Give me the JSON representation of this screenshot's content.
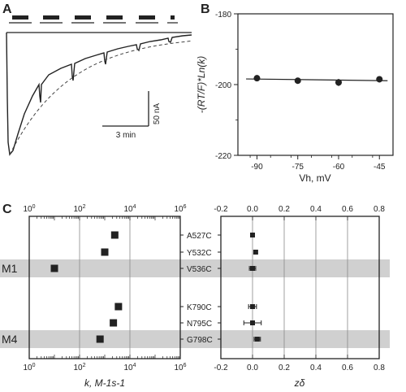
{
  "panels": {
    "a": "A",
    "b": "B",
    "c": "C"
  },
  "chart_data": [
    {
      "panel": "A",
      "type": "line",
      "scale_bars": {
        "current": "50 nA",
        "time": "3 min"
      },
      "application_bars_count": 6,
      "description_free": true
    },
    {
      "panel": "B",
      "type": "scatter",
      "xlabel": "Vh, mV",
      "ylabel": "-(RT/F)*Ln(k)",
      "xlim": [
        -97,
        -40
      ],
      "ylim": [
        -220,
        -180
      ],
      "x_ticks": [
        -90,
        -75,
        -60,
        -45
      ],
      "x_tick_labels": [
        "-90",
        "-75",
        "-60",
        "-45"
      ],
      "y_ticks": [
        -220,
        -200,
        -180
      ],
      "y_tick_labels": [
        "-220",
        "-200",
        "-180"
      ],
      "points": [
        {
          "x": -90,
          "y": -198.2
        },
        {
          "x": -75,
          "y": -198.9
        },
        {
          "x": -60,
          "y": -199.4,
          "err": 1.0
        },
        {
          "x": -45,
          "y": -198.5
        }
      ],
      "fit": {
        "x": [
          -94,
          -42
        ],
        "y": [
          -198.4,
          -198.9
        ]
      }
    },
    {
      "panel": "C-left",
      "type": "scatter",
      "xlabel": "k, M-1s-1",
      "x_scale": "log",
      "xlim": [
        1,
        1000000
      ],
      "x_ticks": [
        1,
        100,
        10000,
        1000000
      ],
      "x_tick_exponents": [
        "0",
        "2",
        "4",
        "6"
      ],
      "categories": [
        "A527C",
        "Y532C",
        "V536C",
        "K790C",
        "N795C",
        "G798C"
      ],
      "values": [
        2500,
        1000,
        10,
        3500,
        2200,
        650
      ],
      "group_labels": [
        {
          "text": "M1",
          "row": "V536C"
        },
        {
          "text": "M4",
          "row": "G798C"
        }
      ],
      "highlighted_rows": [
        "V536C",
        "G798C"
      ]
    },
    {
      "panel": "C-right",
      "type": "scatter",
      "xlabel": "zδ",
      "xlim": [
        -0.2,
        0.8
      ],
      "x_ticks": [
        -0.2,
        0.0,
        0.2,
        0.4,
        0.6,
        0.8
      ],
      "x_tick_labels": [
        "-0.2",
        "0.0",
        "0.2",
        "0.4",
        "0.6",
        "0.8"
      ],
      "categories": [
        "A527C",
        "Y532C",
        "V536C",
        "K790C",
        "N795C",
        "G798C"
      ],
      "values": [
        0.0,
        0.02,
        0.0,
        0.0,
        0.0,
        0.03
      ],
      "errors": [
        0.01,
        0.01,
        0.02,
        0.025,
        0.055,
        0.02
      ]
    }
  ]
}
